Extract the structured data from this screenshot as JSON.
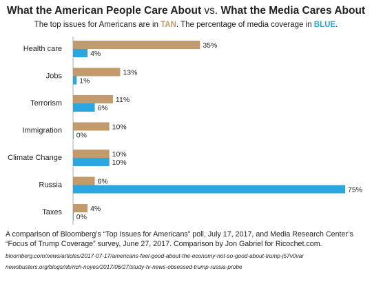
{
  "header": {
    "title_part1": "What the American People Care About",
    "title_vs": " vs. ",
    "title_part2": "What the Media Cares About",
    "subtitle_pre": "The top issues for Americans are in ",
    "subtitle_tan": "TAN",
    "subtitle_mid": ". The percentage of media coverage in ",
    "subtitle_blue": "BLUE",
    "subtitle_post": "."
  },
  "chart_data": {
    "type": "bar",
    "orientation": "horizontal",
    "categories": [
      "Health care",
      "Jobs",
      "Terrorism",
      "Immigration",
      "Climate Change",
      "Russia",
      "Taxes"
    ],
    "series": [
      {
        "name": "Top issues for Americans",
        "color": "#c39a6b",
        "values": [
          35,
          13,
          11,
          10,
          10,
          6,
          4
        ]
      },
      {
        "name": "Media coverage",
        "color": "#2ba6de",
        "values": [
          4,
          1,
          6,
          0,
          10,
          75,
          0
        ]
      }
    ],
    "value_suffix": "%",
    "xlim": [
      0,
      75
    ],
    "grid": false
  },
  "footer": {
    "note": "A comparison of Bloomberg’s “Top Issues for Americans” poll, July 17, 2017, and Media Research Center’s “Focus of Trump Coverage” survey, June 27, 2017. Comparison by Jon Gabriel for Ricochet.com.",
    "source1": "bloomberg.com/news/articles/2017-07-17/americans-feel-good-about-the-economy-not-so-good-about-trump-j57v0var",
    "source2": "newsbusters.org/blogs/nb/rich-noyes/2017/06/27/study-tv-news-obsessed-trump-russia-probe"
  }
}
